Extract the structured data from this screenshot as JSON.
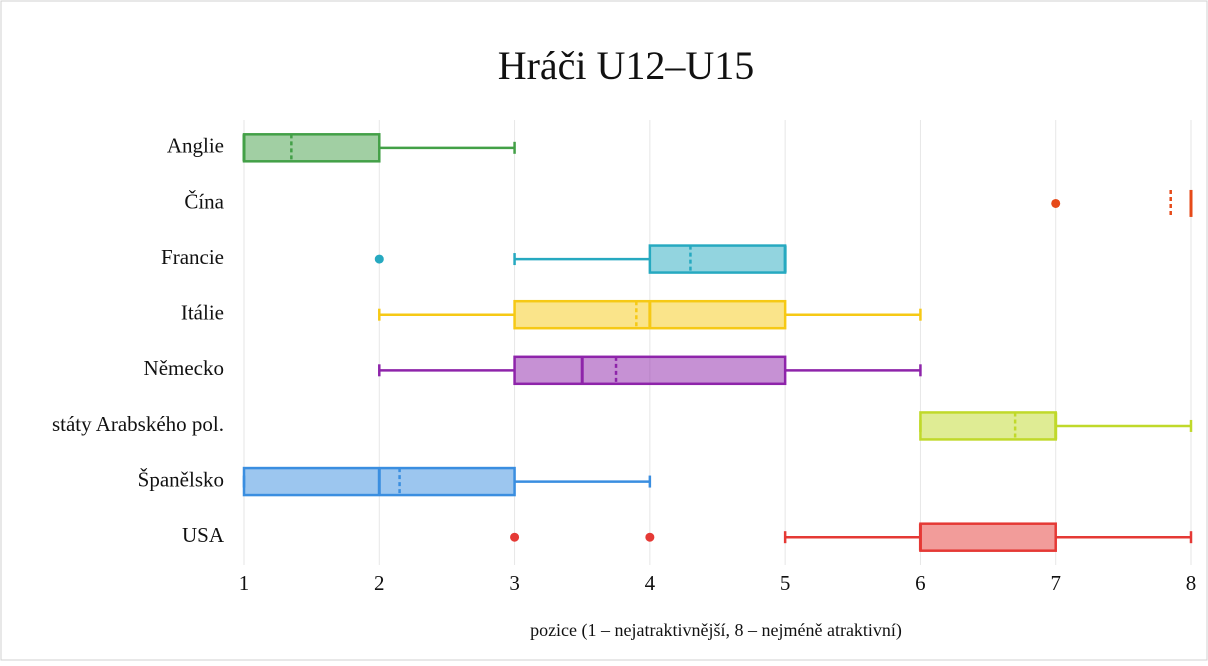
{
  "chart_data": {
    "type": "boxplot",
    "orientation": "horizontal",
    "title": "Hráči U12–U15",
    "xlabel": "pozice (1 – nejatraktivnější, 8 – nejméně atraktivní)",
    "categories": [
      "Anglie",
      "Čína",
      "Francie",
      "Itálie",
      "Německo",
      "státy Arabského pol.",
      "Španělsko",
      "USA"
    ],
    "colors": [
      "#43a047",
      "#e64a19",
      "#26a9c0",
      "#f6c915",
      "#8e24aa",
      "#c0d92a",
      "#3a8ee0",
      "#e53935"
    ],
    "boxes": [
      {
        "min": 1,
        "q1": 1,
        "median": 1,
        "q3": 2,
        "max": 3,
        "mean": 1.35,
        "outliers": []
      },
      {
        "min": 8,
        "q1": 8,
        "median": 8,
        "q3": 8,
        "max": 8,
        "mean": 7.85,
        "outliers": [
          7
        ]
      },
      {
        "min": 3,
        "q1": 4,
        "median": 5,
        "q3": 5,
        "max": 5,
        "mean": 4.3,
        "outliers": [
          2
        ]
      },
      {
        "min": 2,
        "q1": 3,
        "median": 4,
        "q3": 5,
        "max": 6,
        "mean": 3.9,
        "outliers": []
      },
      {
        "min": 2,
        "q1": 3,
        "median": 3.5,
        "q3": 5,
        "max": 6,
        "mean": 3.75,
        "outliers": []
      },
      {
        "min": 6,
        "q1": 6,
        "median": 7,
        "q3": 7,
        "max": 8,
        "mean": 6.7,
        "outliers": []
      },
      {
        "min": 1,
        "q1": 1,
        "median": 2,
        "q3": 3,
        "max": 4,
        "mean": 2.15,
        "outliers": []
      },
      {
        "min": 5,
        "q1": 6,
        "median": 6,
        "q3": 7,
        "max": 8,
        "mean": null,
        "outliers": [
          3,
          4
        ]
      }
    ],
    "xlim": [
      1,
      8
    ],
    "xticks": [
      1,
      2,
      3,
      4,
      5,
      6,
      7,
      8
    ],
    "grid": true
  }
}
